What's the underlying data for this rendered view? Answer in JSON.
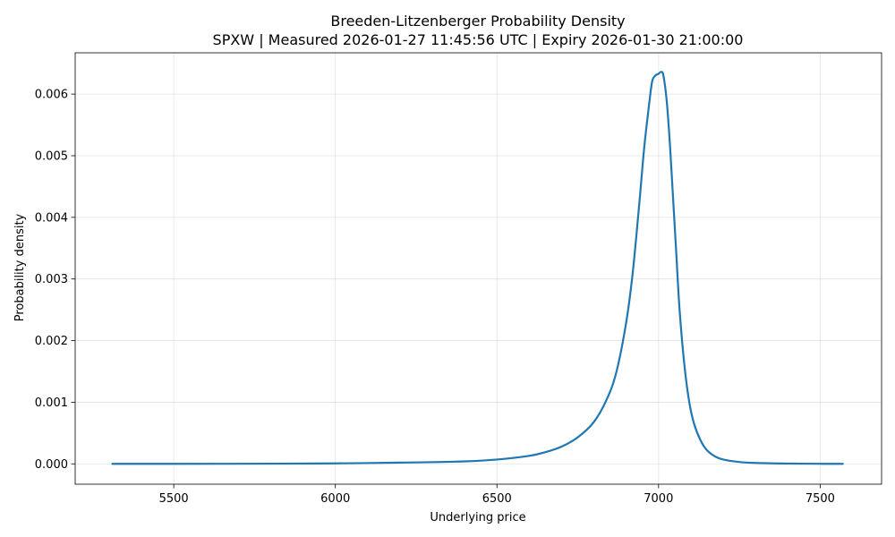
{
  "chart_data": {
    "type": "line",
    "title": "Breeden-Litzenberger Probability Density",
    "subtitle": "SPXW | Measured 2026-01-27 11:45:56 UTC | Expiry 2026-01-30 21:00:00",
    "xlabel": "Underlying price",
    "ylabel": "Probability density",
    "xlim": [
      5195,
      7690
    ],
    "ylim": [
      -0.00033,
      0.00667
    ],
    "xticks": [
      5500,
      6000,
      6500,
      7000,
      7500
    ],
    "xtick_labels": [
      "5500",
      "6000",
      "6500",
      "7000",
      "7500"
    ],
    "yticks": [
      0.0,
      0.001,
      0.002,
      0.003,
      0.004,
      0.005,
      0.006
    ],
    "ytick_labels": [
      "0.000",
      "0.001",
      "0.002",
      "0.003",
      "0.004",
      "0.005",
      "0.006"
    ],
    "grid": true,
    "series": [
      {
        "name": "Probability density",
        "color": "#1f77b4",
        "x": [
          5310,
          5500,
          5800,
          6000,
          6200,
          6400,
          6500,
          6600,
          6650,
          6700,
          6750,
          6800,
          6840,
          6870,
          6900,
          6920,
          6940,
          6955,
          6970,
          6980,
          6990,
          7000,
          7008,
          7015,
          7025,
          7035,
          7045,
          7055,
          7065,
          7080,
          7095,
          7110,
          7130,
          7150,
          7175,
          7200,
          7250,
          7300,
          7400,
          7500,
          7570
        ],
        "values": [
          0.0,
          0.0,
          3e-06,
          8e-06,
          2e-05,
          4e-05,
          7e-05,
          0.00013,
          0.00019,
          0.00028,
          0.00043,
          0.00068,
          0.00105,
          0.0015,
          0.0023,
          0.0031,
          0.0042,
          0.0051,
          0.0058,
          0.0062,
          0.0063,
          0.00633,
          0.00636,
          0.0063,
          0.0059,
          0.0052,
          0.0043,
          0.0034,
          0.0025,
          0.0016,
          0.001,
          0.00065,
          0.00038,
          0.00022,
          0.00012,
          7e-05,
          3e-05,
          1.5e-05,
          5e-06,
          1e-06,
          0.0
        ]
      }
    ]
  }
}
